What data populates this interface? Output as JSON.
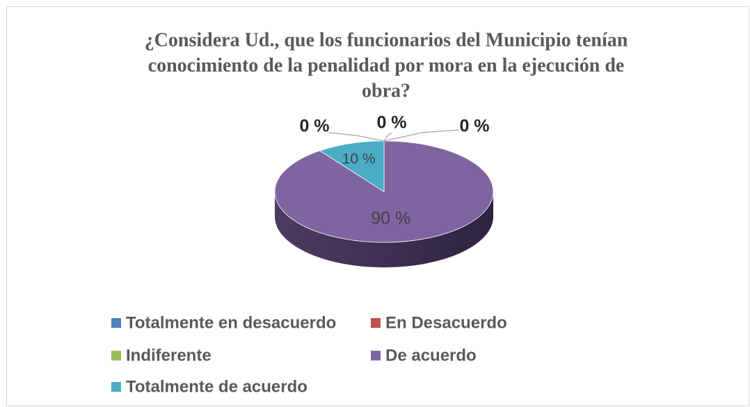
{
  "chart_data": {
    "type": "pie",
    "title": "¿Considera Ud., que los funcionarios del Municipio tenían conocimiento de la penalidad por mora en la ejecución de obra?",
    "title_lines": [
      "¿Considera Ud., que los funcionarios del Municipio tenían",
      "conocimiento de la penalidad por mora en la ejecución de",
      "obra?"
    ],
    "categories": [
      "Totalmente en desacuerdo",
      "En Desacuerdo",
      "Indiferente",
      "De acuerdo",
      "Totalmente de acuerdo"
    ],
    "values": [
      0,
      0,
      0,
      90,
      10
    ],
    "value_labels": [
      "0 %",
      "0 %",
      "0 %",
      "90 %",
      "10 %"
    ],
    "colors": [
      "#4f81bd",
      "#c0504d",
      "#9bbb59",
      "#8064a2",
      "#4bacc6"
    ],
    "legend": "bottom"
  }
}
